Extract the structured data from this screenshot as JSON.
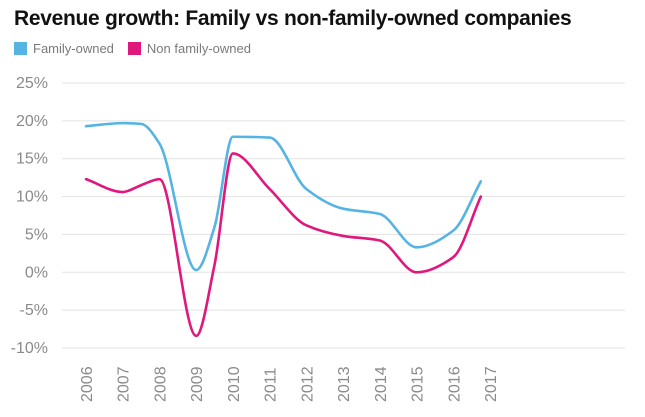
{
  "chart_data": {
    "type": "line",
    "title": "Revenue growth: Family vs non-family-owned companies",
    "xlabel": "",
    "ylabel": "",
    "ylim": [
      -10,
      25
    ],
    "yticks": [
      25,
      20,
      15,
      10,
      5,
      0,
      -5,
      -10
    ],
    "ytick_labels": [
      "25%",
      "20%",
      "15%",
      "10%",
      "5%",
      "0%",
      "-5%",
      "-10%"
    ],
    "x_ticks": [
      2006,
      2007,
      2008,
      2009,
      2010,
      2011,
      2012,
      2013,
      2014,
      2015,
      2016,
      2017
    ],
    "x_tick_labels": [
      "2006",
      "2007",
      "2008",
      "2009",
      "2010",
      "2011",
      "2012",
      "2013",
      "2014",
      "2015",
      "2016",
      "2017"
    ],
    "grid": true,
    "legend_placement": "top-left",
    "series": [
      {
        "name": "Family-owned",
        "color": "#56b4e3",
        "x": [
          2006,
          2007,
          2007.5,
          2008,
          2009,
          2009.5,
          2010,
          2011,
          2012,
          2013,
          2014,
          2015,
          2016,
          2016.75
        ],
        "values": [
          19.3,
          19.7,
          19.6,
          17,
          0.3,
          6,
          17.9,
          17.8,
          11,
          8.4,
          7.7,
          3.3,
          5.5,
          12
        ]
      },
      {
        "name": "Non family-owned",
        "color": "#e0187c",
        "x": [
          2006,
          2007,
          2007.5,
          2008,
          2009,
          2009.5,
          2010,
          2011,
          2012,
          2013,
          2014,
          2015,
          2016,
          2016.75
        ],
        "values": [
          12.3,
          10.6,
          11.5,
          12.3,
          -8.4,
          1,
          15.7,
          11,
          6.2,
          4.8,
          4.2,
          0,
          2,
          10
        ]
      }
    ]
  }
}
